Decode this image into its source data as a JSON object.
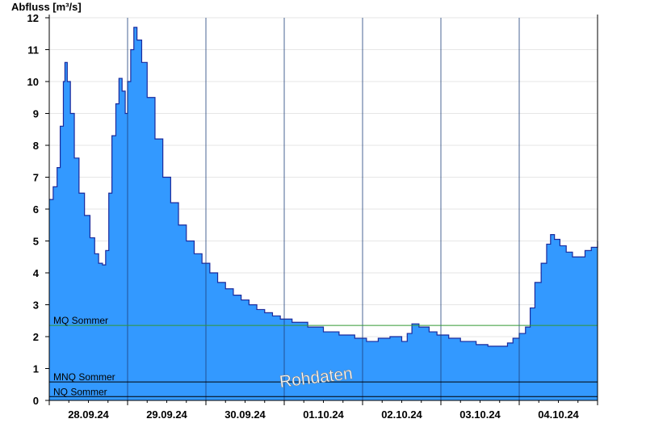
{
  "chart_data": {
    "type": "area",
    "ylabel": "Abfluss [m³/s]",
    "ylim": [
      0,
      12
    ],
    "yticks": [
      "0",
      "1",
      "2",
      "3",
      "4",
      "5",
      "6",
      "7",
      "8",
      "9",
      "10",
      "11",
      "12"
    ],
    "x_tick_labels": [
      "28.09.24",
      "29.09.24",
      "30.09.24",
      "01.10.24",
      "02.10.24",
      "03.10.24",
      "04.10.24"
    ],
    "xlim_days": [
      27.0,
      34.0
    ],
    "grid": "horizontal",
    "series": [
      {
        "color": "#3399ff",
        "points": [
          [
            27.0,
            6.3
          ],
          [
            27.05,
            6.7
          ],
          [
            27.1,
            7.3
          ],
          [
            27.14,
            8.6
          ],
          [
            27.18,
            10.0
          ],
          [
            27.2,
            10.6
          ],
          [
            27.23,
            10.0
          ],
          [
            27.27,
            9.0
          ],
          [
            27.32,
            7.6
          ],
          [
            27.38,
            6.5
          ],
          [
            27.45,
            5.8
          ],
          [
            27.52,
            5.1
          ],
          [
            27.58,
            4.6
          ],
          [
            27.63,
            4.3
          ],
          [
            27.68,
            4.25
          ],
          [
            27.72,
            4.7
          ],
          [
            27.76,
            6.5
          ],
          [
            27.8,
            8.3
          ],
          [
            27.85,
            9.3
          ],
          [
            27.89,
            10.1
          ],
          [
            27.93,
            9.7
          ],
          [
            27.97,
            9.0
          ],
          [
            28.0,
            10.0
          ],
          [
            28.04,
            11.0
          ],
          [
            28.08,
            11.7
          ],
          [
            28.12,
            11.3
          ],
          [
            28.18,
            10.6
          ],
          [
            28.25,
            9.5
          ],
          [
            28.35,
            8.2
          ],
          [
            28.45,
            7.0
          ],
          [
            28.55,
            6.2
          ],
          [
            28.65,
            5.5
          ],
          [
            28.75,
            5.0
          ],
          [
            28.85,
            4.6
          ],
          [
            28.95,
            4.3
          ],
          [
            29.05,
            4.0
          ],
          [
            29.15,
            3.7
          ],
          [
            29.25,
            3.5
          ],
          [
            29.35,
            3.3
          ],
          [
            29.45,
            3.15
          ],
          [
            29.55,
            3.0
          ],
          [
            29.65,
            2.85
          ],
          [
            29.75,
            2.75
          ],
          [
            29.85,
            2.65
          ],
          [
            29.95,
            2.55
          ],
          [
            30.1,
            2.45
          ],
          [
            30.3,
            2.3
          ],
          [
            30.5,
            2.15
          ],
          [
            30.7,
            2.05
          ],
          [
            30.9,
            1.95
          ],
          [
            31.05,
            1.85
          ],
          [
            31.2,
            1.95
          ],
          [
            31.35,
            2.0
          ],
          [
            31.5,
            1.85
          ],
          [
            31.57,
            2.1
          ],
          [
            31.63,
            2.4
          ],
          [
            31.72,
            2.3
          ],
          [
            31.85,
            2.15
          ],
          [
            31.95,
            2.05
          ],
          [
            32.1,
            1.95
          ],
          [
            32.25,
            1.85
          ],
          [
            32.45,
            1.75
          ],
          [
            32.6,
            1.7
          ],
          [
            32.75,
            1.7
          ],
          [
            32.85,
            1.8
          ],
          [
            32.92,
            1.95
          ],
          [
            33.0,
            2.1
          ],
          [
            33.08,
            2.3
          ],
          [
            33.14,
            2.9
          ],
          [
            33.2,
            3.7
          ],
          [
            33.28,
            4.3
          ],
          [
            33.35,
            4.9
          ],
          [
            33.4,
            5.2
          ],
          [
            33.45,
            5.05
          ],
          [
            33.52,
            4.85
          ],
          [
            33.6,
            4.65
          ],
          [
            33.68,
            4.5
          ],
          [
            33.76,
            4.5
          ],
          [
            33.84,
            4.7
          ],
          [
            33.92,
            4.8
          ],
          [
            34.0,
            5.0
          ]
        ]
      }
    ],
    "reference_lines": [
      {
        "label": "MQ Sommer",
        "value": 2.35,
        "color": "#339933"
      },
      {
        "label": "MNQ Sommer",
        "value": 0.58,
        "color": "#000000"
      },
      {
        "label": "NQ Sommer",
        "value": 0.12,
        "color": "#000000"
      }
    ],
    "watermark": "Rohdaten"
  }
}
